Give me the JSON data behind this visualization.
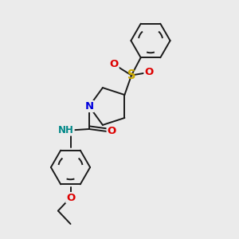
{
  "bg_color": "#ebebeb",
  "bond_color": "#1a1a1a",
  "N_color": "#0000dd",
  "O_color": "#dd0000",
  "S_color": "#ccaa00",
  "NH_color": "#008888",
  "lw": 1.4,
  "fs": 8.5,
  "fig_w": 3.0,
  "fig_h": 3.0,
  "dpi": 100,
  "xlim": [
    0,
    10
  ],
  "ylim": [
    0,
    10
  ]
}
